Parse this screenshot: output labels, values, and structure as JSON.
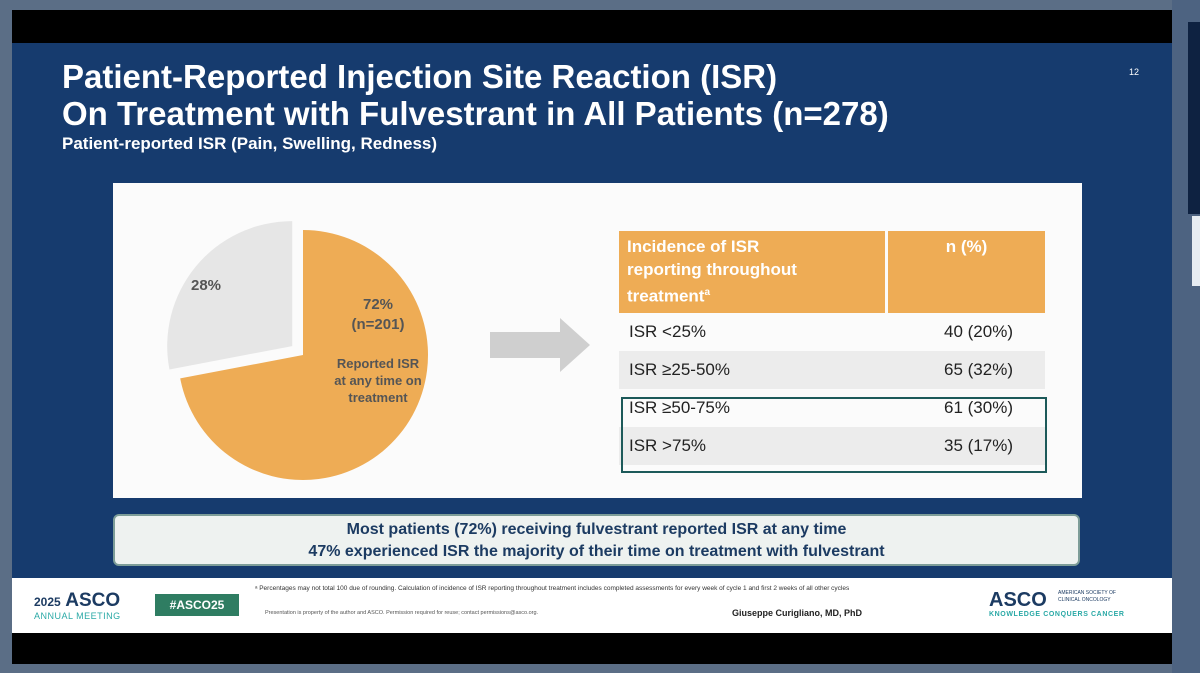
{
  "slide": {
    "number": "12",
    "title_line1": "Patient-Reported Injection Site Reaction (ISR)",
    "title_line2": "On Treatment with Fulvestrant in All Patients (n=278)",
    "subtitle": "Patient-reported ISR (Pain, Swelling, Redness)"
  },
  "pie": {
    "slices": [
      {
        "label": "28%",
        "value": 28,
        "color": "#e6e6e6"
      },
      {
        "label": "72%",
        "value": 72,
        "color": "#eeac55"
      }
    ],
    "main_pct": "72%",
    "main_n": "(n=201)",
    "main_desc_1": "Reported ISR",
    "main_desc_2": "at any time on",
    "main_desc_3": "treatment"
  },
  "table": {
    "header_col1_line1": "Incidence of ISR",
    "header_col1_line2": "reporting throughout",
    "header_col1_line3": "treatment",
    "header_col1_sup": "a",
    "header_col2": "n (%)",
    "rows": [
      {
        "label": "ISR <25%",
        "value": "40 (20%)"
      },
      {
        "label": "ISR ≥25-50%",
        "value": "65 (32%)"
      },
      {
        "label": "ISR ≥50-75%",
        "value": "61 (30%)"
      },
      {
        "label": "ISR >75%",
        "value": "35 (17%)"
      }
    ]
  },
  "summary": {
    "line1": "Most patients (72%) receiving fulvestrant reported ISR at any time",
    "line2": "47% experienced ISR the majority of their time on treatment with fulvestrant"
  },
  "footer": {
    "asco_year": "2025",
    "asco_name": "ASCO",
    "asco_meeting": "ANNUAL MEETING",
    "hashtag": "#ASCO25",
    "footnote": "ᵃ Percentages may not total 100 due of rounding. Calculation of incidence of ISR reporting throughout treatment includes completed assessments for every week of cycle 1 and first 2 weeks of all other cycles",
    "property_note": "Presentation is property of the author and ASCO. Permission required for reuse; contact permissions@asco.org.",
    "author": "Giuseppe Curigliano, MD, PhD",
    "logo": "ASCO",
    "logo_sub": "AMERICAN SOCIETY OF CLINICAL ONCOLOGY",
    "tagline": "KNOWLEDGE CONQUERS CANCER"
  },
  "colors": {
    "slide_bg": "#163b6e",
    "accent": "#eeac55",
    "highlight": "#1d5a5a",
    "hashtag": "#2f7d62"
  }
}
